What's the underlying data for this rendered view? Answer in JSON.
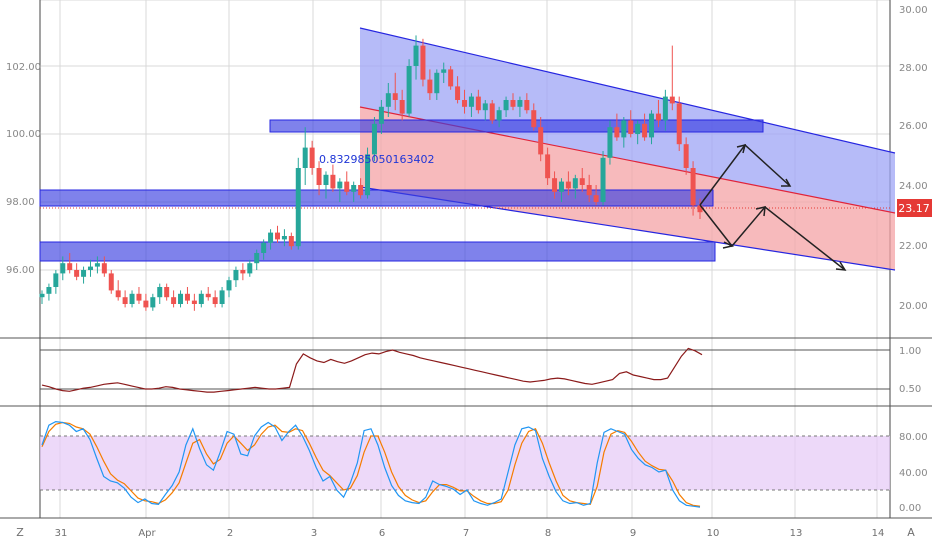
{
  "chart_data": {
    "type": "candlestick",
    "main_panel": {
      "left_axis_ticks": [
        "102.00",
        "100.00",
        "98.00",
        "96.00"
      ],
      "right_axis_ticks": [
        "30.00",
        "28.00",
        "26.00",
        "24.00",
        "22.00",
        "20.00"
      ],
      "price_badge": "23.17",
      "annotation": "0.832985050163402",
      "x_labels": [
        "31",
        "Apr",
        "2",
        "3",
        "6",
        "7",
        "8",
        "9",
        "10",
        "13",
        "14"
      ],
      "candles": [
        [
          95.2,
          95.4,
          95.0,
          95.3
        ],
        [
          95.3,
          95.6,
          95.1,
          95.5
        ],
        [
          95.5,
          96.0,
          95.3,
          95.9
        ],
        [
          95.9,
          96.4,
          95.7,
          96.2
        ],
        [
          96.2,
          96.5,
          95.9,
          96.0
        ],
        [
          96.0,
          96.2,
          95.7,
          95.8
        ],
        [
          95.8,
          96.1,
          95.6,
          96.0
        ],
        [
          96.0,
          96.3,
          95.8,
          96.1
        ],
        [
          96.1,
          96.4,
          95.9,
          96.2
        ],
        [
          96.2,
          96.4,
          95.8,
          95.9
        ],
        [
          95.9,
          96.0,
          95.3,
          95.4
        ],
        [
          95.4,
          95.7,
          95.1,
          95.2
        ],
        [
          95.2,
          95.4,
          94.9,
          95.0
        ],
        [
          95.0,
          95.4,
          94.9,
          95.3
        ],
        [
          95.3,
          95.5,
          95.0,
          95.1
        ],
        [
          95.1,
          95.3,
          94.8,
          94.9
        ],
        [
          94.9,
          95.3,
          94.8,
          95.2
        ],
        [
          95.2,
          95.6,
          95.0,
          95.5
        ],
        [
          95.5,
          95.6,
          95.1,
          95.2
        ],
        [
          95.2,
          95.4,
          94.9,
          95.0
        ],
        [
          95.0,
          95.4,
          94.9,
          95.3
        ],
        [
          95.3,
          95.5,
          95.0,
          95.1
        ],
        [
          95.1,
          95.3,
          94.8,
          95.0
        ],
        [
          95.0,
          95.4,
          94.9,
          95.3
        ],
        [
          95.3,
          95.5,
          95.1,
          95.2
        ],
        [
          95.2,
          95.4,
          94.9,
          95.0
        ],
        [
          95.0,
          95.5,
          94.9,
          95.4
        ],
        [
          95.4,
          95.8,
          95.2,
          95.7
        ],
        [
          95.7,
          96.1,
          95.5,
          96.0
        ],
        [
          96.0,
          96.2,
          95.7,
          95.9
        ],
        [
          95.9,
          96.3,
          95.8,
          96.2
        ],
        [
          96.2,
          96.6,
          96.0,
          96.5
        ],
        [
          96.5,
          96.9,
          96.3,
          96.8
        ],
        [
          96.8,
          97.2,
          96.6,
          97.1
        ],
        [
          97.1,
          97.3,
          96.8,
          96.9
        ],
        [
          96.9,
          97.2,
          96.7,
          97.0
        ],
        [
          97.0,
          97.1,
          96.6,
          96.7
        ],
        [
          96.7,
          99.3,
          96.6,
          99.0
        ],
        [
          99.0,
          100.2,
          98.5,
          99.6
        ],
        [
          99.6,
          99.8,
          98.8,
          99.0
        ],
        [
          99.0,
          99.2,
          98.2,
          98.5
        ],
        [
          98.5,
          98.9,
          98.1,
          98.8
        ],
        [
          98.8,
          99.1,
          98.3,
          98.4
        ],
        [
          98.4,
          98.7,
          98.0,
          98.6
        ],
        [
          98.6,
          98.9,
          98.2,
          98.3
        ],
        [
          98.3,
          98.6,
          98.0,
          98.5
        ],
        [
          98.5,
          98.7,
          98.1,
          98.2
        ],
        [
          98.2,
          99.6,
          98.1,
          99.4
        ],
        [
          99.4,
          100.5,
          99.2,
          100.3
        ],
        [
          100.3,
          101.0,
          100.0,
          100.8
        ],
        [
          100.8,
          101.5,
          100.5,
          101.2
        ],
        [
          101.2,
          101.8,
          100.7,
          101.0
        ],
        [
          101.0,
          101.3,
          100.4,
          100.6
        ],
        [
          100.6,
          102.2,
          100.5,
          102.0
        ],
        [
          102.0,
          102.9,
          101.6,
          102.6
        ],
        [
          102.6,
          102.8,
          101.4,
          101.6
        ],
        [
          101.6,
          101.9,
          101.0,
          101.2
        ],
        [
          101.2,
          101.9,
          101.0,
          101.8
        ],
        [
          101.8,
          102.1,
          101.5,
          101.9
        ],
        [
          101.9,
          102.0,
          101.3,
          101.4
        ],
        [
          101.4,
          101.7,
          100.9,
          101.0
        ],
        [
          101.0,
          101.3,
          100.6,
          100.8
        ],
        [
          100.8,
          101.2,
          100.5,
          101.1
        ],
        [
          101.1,
          101.3,
          100.6,
          100.7
        ],
        [
          100.7,
          101.0,
          100.4,
          100.9
        ],
        [
          100.9,
          101.0,
          100.3,
          100.4
        ],
        [
          100.4,
          100.8,
          100.2,
          100.7
        ],
        [
          100.7,
          101.1,
          100.5,
          101.0
        ],
        [
          101.0,
          101.2,
          100.7,
          100.8
        ],
        [
          100.8,
          101.1,
          100.5,
          101.0
        ],
        [
          101.0,
          101.2,
          100.6,
          100.7
        ],
        [
          100.7,
          100.9,
          100.1,
          100.2
        ],
        [
          100.2,
          100.5,
          99.2,
          99.4
        ],
        [
          99.4,
          99.6,
          98.5,
          98.7
        ],
        [
          98.7,
          98.9,
          98.1,
          98.3
        ],
        [
          98.3,
          98.7,
          98.0,
          98.6
        ],
        [
          98.6,
          98.9,
          98.2,
          98.4
        ],
        [
          98.4,
          98.8,
          98.1,
          98.7
        ],
        [
          98.7,
          99.0,
          98.3,
          98.5
        ],
        [
          98.5,
          98.8,
          98.0,
          98.2
        ],
        [
          98.2,
          98.5,
          97.9,
          98.0
        ],
        [
          98.0,
          99.5,
          97.9,
          99.3
        ],
        [
          99.3,
          100.4,
          99.1,
          100.2
        ],
        [
          100.2,
          100.6,
          99.8,
          99.9
        ],
        [
          99.9,
          100.5,
          99.6,
          100.4
        ],
        [
          100.4,
          100.7,
          99.9,
          100.0
        ],
        [
          100.0,
          100.4,
          99.7,
          100.3
        ],
        [
          100.3,
          100.6,
          99.8,
          99.9
        ],
        [
          99.9,
          100.7,
          99.7,
          100.6
        ],
        [
          100.6,
          101.0,
          100.2,
          100.4
        ],
        [
          100.4,
          101.3,
          100.1,
          101.1
        ],
        [
          101.1,
          102.6,
          100.7,
          100.9
        ],
        [
          100.9,
          101.1,
          99.5,
          99.7
        ],
        [
          99.7,
          99.9,
          98.8,
          99.0
        ],
        [
          99.0,
          99.2,
          97.6,
          97.9
        ],
        [
          97.9,
          98.1,
          97.5,
          97.7
        ]
      ]
    },
    "middle_panel": {
      "axis_ticks": [
        "1.00",
        "0.50"
      ],
      "values": [
        0.55,
        0.53,
        0.5,
        0.48,
        0.47,
        0.49,
        0.51,
        0.52,
        0.54,
        0.56,
        0.57,
        0.58,
        0.56,
        0.54,
        0.52,
        0.5,
        0.5,
        0.51,
        0.53,
        0.52,
        0.5,
        0.49,
        0.48,
        0.47,
        0.46,
        0.46,
        0.47,
        0.48,
        0.49,
        0.5,
        0.51,
        0.52,
        0.51,
        0.5,
        0.5,
        0.51,
        0.52,
        0.82,
        0.95,
        0.9,
        0.86,
        0.84,
        0.88,
        0.85,
        0.83,
        0.86,
        0.9,
        0.94,
        0.96,
        0.95,
        0.98,
        1.0,
        0.97,
        0.95,
        0.93,
        0.9,
        0.88,
        0.86,
        0.84,
        0.82,
        0.8,
        0.78,
        0.76,
        0.74,
        0.72,
        0.7,
        0.68,
        0.66,
        0.64,
        0.62,
        0.6,
        0.59,
        0.6,
        0.61,
        0.63,
        0.64,
        0.63,
        0.61,
        0.59,
        0.57,
        0.56,
        0.58,
        0.6,
        0.62,
        0.7,
        0.72,
        0.68,
        0.66,
        0.64,
        0.62,
        0.62,
        0.64,
        0.78,
        0.92,
        1.02,
        0.99,
        0.94
      ]
    },
    "bottom_panel": {
      "axis_ticks": [
        "80.00",
        "40.00",
        "0.00"
      ],
      "band": [
        20,
        80
      ],
      "k": [
        70,
        92,
        96,
        95,
        92,
        85,
        88,
        76,
        55,
        35,
        30,
        28,
        22,
        12,
        6,
        10,
        5,
        4,
        15,
        25,
        40,
        70,
        88,
        66,
        48,
        42,
        62,
        85,
        82,
        60,
        58,
        80,
        90,
        95,
        90,
        75,
        85,
        92,
        80,
        64,
        45,
        30,
        35,
        20,
        12,
        28,
        50,
        86,
        88,
        70,
        45,
        25,
        14,
        8,
        6,
        5,
        12,
        30,
        26,
        24,
        21,
        15,
        20,
        8,
        5,
        3,
        6,
        10,
        40,
        70,
        88,
        90,
        86,
        55,
        35,
        18,
        8,
        5,
        6,
        3,
        5,
        50,
        84,
        88,
        85,
        82,
        65,
        55,
        48,
        45,
        40,
        42,
        20,
        8,
        3,
        2,
        1
      ],
      "d": [
        68,
        85,
        93,
        95,
        94,
        90,
        88,
        82,
        68,
        52,
        38,
        31,
        27,
        19,
        11,
        8,
        7,
        5,
        9,
        17,
        28,
        50,
        72,
        76,
        60,
        49,
        54,
        72,
        80,
        72,
        64,
        70,
        82,
        90,
        92,
        85,
        84,
        88,
        86,
        72,
        56,
        42,
        36,
        28,
        20,
        22,
        36,
        62,
        80,
        80,
        62,
        40,
        24,
        14,
        9,
        6,
        8,
        18,
        26,
        26,
        23,
        19,
        19,
        13,
        8,
        5,
        5,
        7,
        20,
        48,
        72,
        85,
        88,
        72,
        50,
        30,
        14,
        8,
        6,
        5,
        4,
        24,
        62,
        82,
        86,
        84,
        74,
        62,
        52,
        47,
        43,
        42,
        30,
        15,
        6,
        3,
        2
      ]
    }
  }
}
